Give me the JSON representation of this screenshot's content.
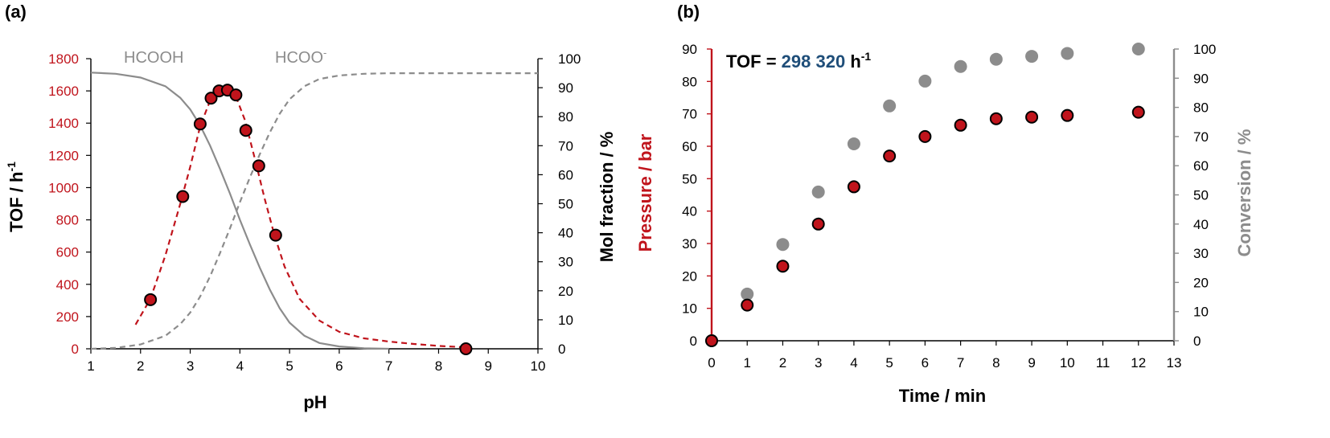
{
  "colors": {
    "red": "#c0141c",
    "gray": "#8c8c8c",
    "dark_blue": "#1f4e79",
    "black": "#000000"
  },
  "chart_data": [
    {
      "panel_label": "(a)",
      "type": "scatter",
      "xlabel": "pH",
      "ylabel": "TOF / h",
      "ylabel_sup": "-1",
      "y2label": "Mol fraction / %",
      "xlim": [
        1,
        10
      ],
      "ylim": [
        0,
        1800
      ],
      "y2lim": [
        0,
        100
      ],
      "x_ticks": [
        1,
        2,
        3,
        4,
        5,
        6,
        7,
        8,
        9,
        10
      ],
      "y_ticks": [
        0,
        200,
        400,
        600,
        800,
        1000,
        1200,
        1400,
        1600,
        1800
      ],
      "y2_ticks": [
        0,
        10,
        20,
        30,
        40,
        50,
        60,
        70,
        80,
        90,
        100
      ],
      "grid": false,
      "annotations": [
        {
          "text": "HCOOH",
          "sup": ""
        },
        {
          "text": "HCOO",
          "sup": "-"
        }
      ],
      "series": [
        {
          "axis": "left",
          "style": "markers",
          "x": [
            2.2,
            2.85,
            3.2,
            3.42,
            3.58,
            3.75,
            3.92,
            4.12,
            4.38,
            4.72,
            8.55
          ],
          "y": [
            305,
            945,
            1395,
            1555,
            1600,
            1605,
            1575,
            1355,
            1135,
            705,
            0
          ]
        },
        {
          "axis": "left",
          "style": "dashed-fit",
          "x": [
            1.9,
            2.2,
            2.5,
            2.8,
            3.0,
            3.2,
            3.4,
            3.6,
            3.75,
            3.9,
            4.1,
            4.3,
            4.5,
            4.7,
            4.9,
            5.2,
            5.6,
            6.0,
            6.5,
            7.0,
            7.5,
            8.0,
            8.5
          ],
          "y": [
            150,
            310,
            580,
            900,
            1130,
            1380,
            1540,
            1600,
            1610,
            1580,
            1420,
            1180,
            930,
            700,
            510,
            310,
            175,
            105,
            65,
            45,
            30,
            18,
            10
          ]
        },
        {
          "axis": "right",
          "style": "solid-line",
          "x": [
            1.0,
            1.5,
            2.0,
            2.5,
            2.8,
            3.0,
            3.2,
            3.4,
            3.6,
            3.8,
            4.0,
            4.2,
            4.4,
            4.6,
            4.8,
            5.0,
            5.3,
            5.6,
            6.0,
            6.5,
            7.0
          ],
          "y": [
            95.2,
            94.8,
            93.5,
            90.5,
            86.5,
            82.5,
            77.0,
            70.0,
            62.0,
            53.5,
            44.5,
            36.0,
            28.0,
            20.5,
            14.0,
            9.0,
            4.5,
            2.0,
            0.8,
            0.2,
            0.0
          ]
        },
        {
          "axis": "right",
          "style": "dashed-line",
          "x": [
            1.0,
            1.5,
            2.0,
            2.5,
            2.8,
            3.0,
            3.2,
            3.4,
            3.6,
            3.8,
            4.0,
            4.2,
            4.4,
            4.6,
            4.8,
            5.0,
            5.3,
            5.6,
            6.0,
            6.5,
            7.0,
            8.0,
            9.0,
            10.0
          ],
          "y": [
            0.0,
            0.3,
            1.5,
            4.5,
            8.5,
            12.5,
            18.0,
            25.0,
            33.0,
            41.5,
            50.5,
            59.0,
            67.0,
            74.5,
            81.0,
            86.0,
            90.5,
            93.0,
            94.2,
            94.8,
            95.0,
            95.0,
            95.0,
            95.0
          ]
        }
      ]
    },
    {
      "panel_label": "(b)",
      "type": "scatter",
      "xlabel": "Time / min",
      "ylabel": "Pressure / bar",
      "y2label": "Conversion / %",
      "xlim": [
        0,
        13
      ],
      "ylim": [
        0,
        90
      ],
      "y2lim": [
        0,
        100
      ],
      "x_ticks": [
        0,
        1,
        2,
        3,
        4,
        5,
        6,
        7,
        8,
        9,
        10,
        11,
        12,
        13
      ],
      "y_ticks": [
        0,
        10,
        20,
        30,
        40,
        50,
        60,
        70,
        80,
        90
      ],
      "y2_ticks": [
        0,
        10,
        20,
        30,
        40,
        50,
        60,
        70,
        80,
        90,
        100
      ],
      "grid": false,
      "annotation": {
        "prefix": "TOF = ",
        "value": "298 320",
        "unit": " h",
        "sup": "-1"
      },
      "series": [
        {
          "axis": "left",
          "style": "markers-red",
          "x": [
            0,
            1,
            2,
            3,
            4,
            5,
            6,
            7,
            8,
            9,
            10,
            12
          ],
          "y": [
            0,
            11,
            23,
            36,
            47.5,
            57,
            63,
            66.5,
            68.5,
            69,
            69.5,
            70.5
          ]
        },
        {
          "axis": "right",
          "style": "markers-gray",
          "x": [
            0,
            1,
            2,
            3,
            4,
            5,
            6,
            7,
            8,
            9,
            10,
            12
          ],
          "y": [
            0,
            16,
            33,
            51,
            67.5,
            80.5,
            89,
            94,
            96.5,
            97.5,
            98.5,
            100
          ]
        }
      ]
    }
  ]
}
